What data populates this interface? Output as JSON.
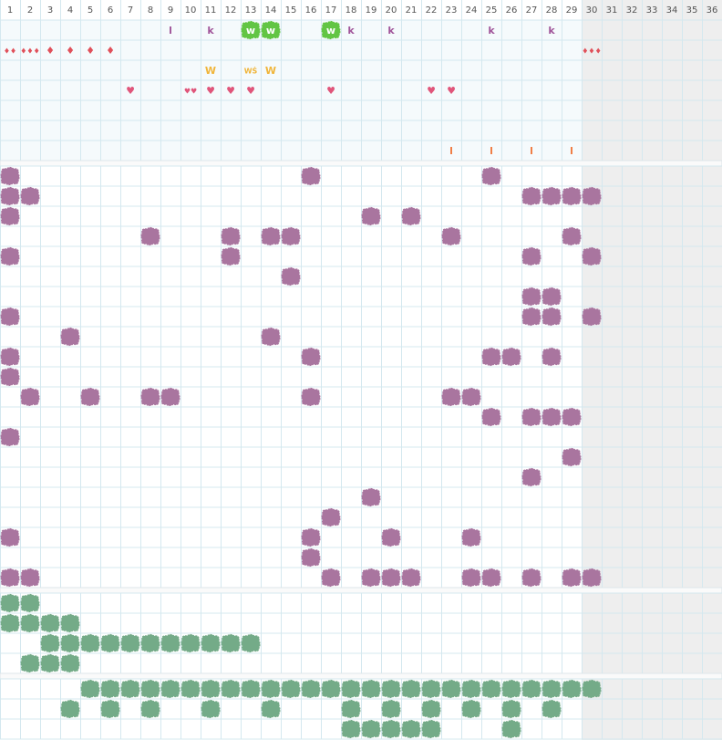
{
  "columns": [
    1,
    2,
    3,
    4,
    5,
    6,
    7,
    8,
    9,
    10,
    11,
    12,
    13,
    14,
    15,
    16,
    17,
    18,
    19,
    20,
    21,
    22,
    23,
    24,
    25,
    26,
    27,
    28,
    29,
    30,
    31,
    32,
    33,
    34,
    35,
    36
  ],
  "shaded_from": 30,
  "sections": [
    {
      "rows": [
        [
          {
            "col": 9,
            "text": "l",
            "color": "#a0559a"
          },
          {
            "col": 11,
            "text": "k",
            "color": "#a0559a"
          },
          {
            "col": 13,
            "text": "w",
            "color": "#ffffff",
            "badge": "#62c544"
          },
          {
            "col": 14,
            "text": "w",
            "color": "#ffffff",
            "badge": "#62c544"
          },
          {
            "col": 17,
            "text": "w",
            "color": "#ffffff",
            "badge": "#62c544"
          },
          {
            "col": 18,
            "text": "k",
            "color": "#a0559a"
          },
          {
            "col": 20,
            "text": "k",
            "color": "#a0559a"
          },
          {
            "col": 25,
            "text": "k",
            "color": "#a0559a"
          },
          {
            "col": 28,
            "text": "k",
            "color": "#a0559a"
          }
        ],
        [
          {
            "col": 1,
            "text": "♦♦",
            "color": "#e0505a"
          },
          {
            "col": 2,
            "text": "♦♦♦",
            "color": "#e0505a"
          },
          {
            "col": 3,
            "text": "♦",
            "color": "#e0505a"
          },
          {
            "col": 4,
            "text": "♦",
            "color": "#e0505a"
          },
          {
            "col": 5,
            "text": "♦",
            "color": "#e0505a"
          },
          {
            "col": 6,
            "text": "♦",
            "color": "#e0505a"
          },
          {
            "col": 30,
            "text": "♦♦♦",
            "color": "#e0505a"
          }
        ],
        [
          {
            "col": 11,
            "text": "W",
            "color": "#f0b53a"
          },
          {
            "col": 13,
            "text": "WŚ",
            "color": "#f0b53a"
          },
          {
            "col": 14,
            "text": "W",
            "color": "#f0b53a"
          }
        ],
        [
          {
            "col": 7,
            "text": "♥",
            "color": "#e0557a"
          },
          {
            "col": 10,
            "text": "♥♥",
            "color": "#e0557a"
          },
          {
            "col": 11,
            "text": "♥",
            "color": "#e0557a"
          },
          {
            "col": 12,
            "text": "♥",
            "color": "#e0557a"
          },
          {
            "col": 13,
            "text": "♥",
            "color": "#e0557a"
          },
          {
            "col": 17,
            "text": "♥",
            "color": "#e0557a"
          },
          {
            "col": 22,
            "text": "♥",
            "color": "#e0557a"
          },
          {
            "col": 23,
            "text": "♥",
            "color": "#e0557a"
          }
        ],
        [],
        [],
        [
          {
            "col": 23,
            "text": "l",
            "color": "#f07a40"
          },
          {
            "col": 25,
            "text": "l",
            "color": "#f07a40"
          },
          {
            "col": 27,
            "text": "l",
            "color": "#f07a40"
          },
          {
            "col": 29,
            "text": "l",
            "color": "#f07a40"
          }
        ]
      ]
    },
    {
      "color": "#a9759f",
      "rows": [
        [
          1,
          16,
          25
        ],
        [
          1,
          2,
          27,
          28,
          29,
          30
        ],
        [
          1,
          19,
          21
        ],
        [
          8,
          12,
          14,
          15,
          23,
          29
        ],
        [
          1,
          12,
          27,
          30
        ],
        [
          15
        ],
        [
          27,
          28
        ],
        [
          1,
          27,
          28,
          30
        ],
        [
          4,
          14
        ],
        [
          1,
          16,
          25,
          26,
          28
        ],
        [
          1
        ],
        [
          2,
          5,
          8,
          9,
          16,
          23,
          24
        ],
        [
          25,
          27,
          28,
          29
        ],
        [
          1
        ],
        [
          29
        ],
        [
          27
        ],
        [
          19
        ],
        [
          17
        ],
        [
          1,
          16,
          20,
          24
        ],
        [
          16
        ],
        [
          1,
          2,
          17,
          19,
          20,
          21,
          24,
          25,
          27,
          29,
          30
        ]
      ]
    },
    {
      "color": "#74ab88",
      "rows": [
        [
          1,
          2
        ],
        [
          1,
          2,
          3,
          4
        ],
        [
          3,
          4,
          5,
          6,
          7,
          8,
          9,
          10,
          11,
          12,
          13
        ],
        [
          2,
          3,
          4
        ]
      ]
    },
    {
      "color": "#74ab88",
      "rows": [
        [
          5,
          6,
          7,
          8,
          9,
          10,
          11,
          12,
          13,
          14,
          15,
          16,
          17,
          18,
          19,
          20,
          21,
          22,
          23,
          24,
          25,
          26,
          27,
          28,
          29,
          30
        ],
        [
          4,
          6,
          8,
          11,
          14,
          18,
          20,
          22,
          24,
          26,
          28
        ],
        [
          18,
          19,
          20,
          21,
          22,
          26
        ]
      ]
    }
  ]
}
